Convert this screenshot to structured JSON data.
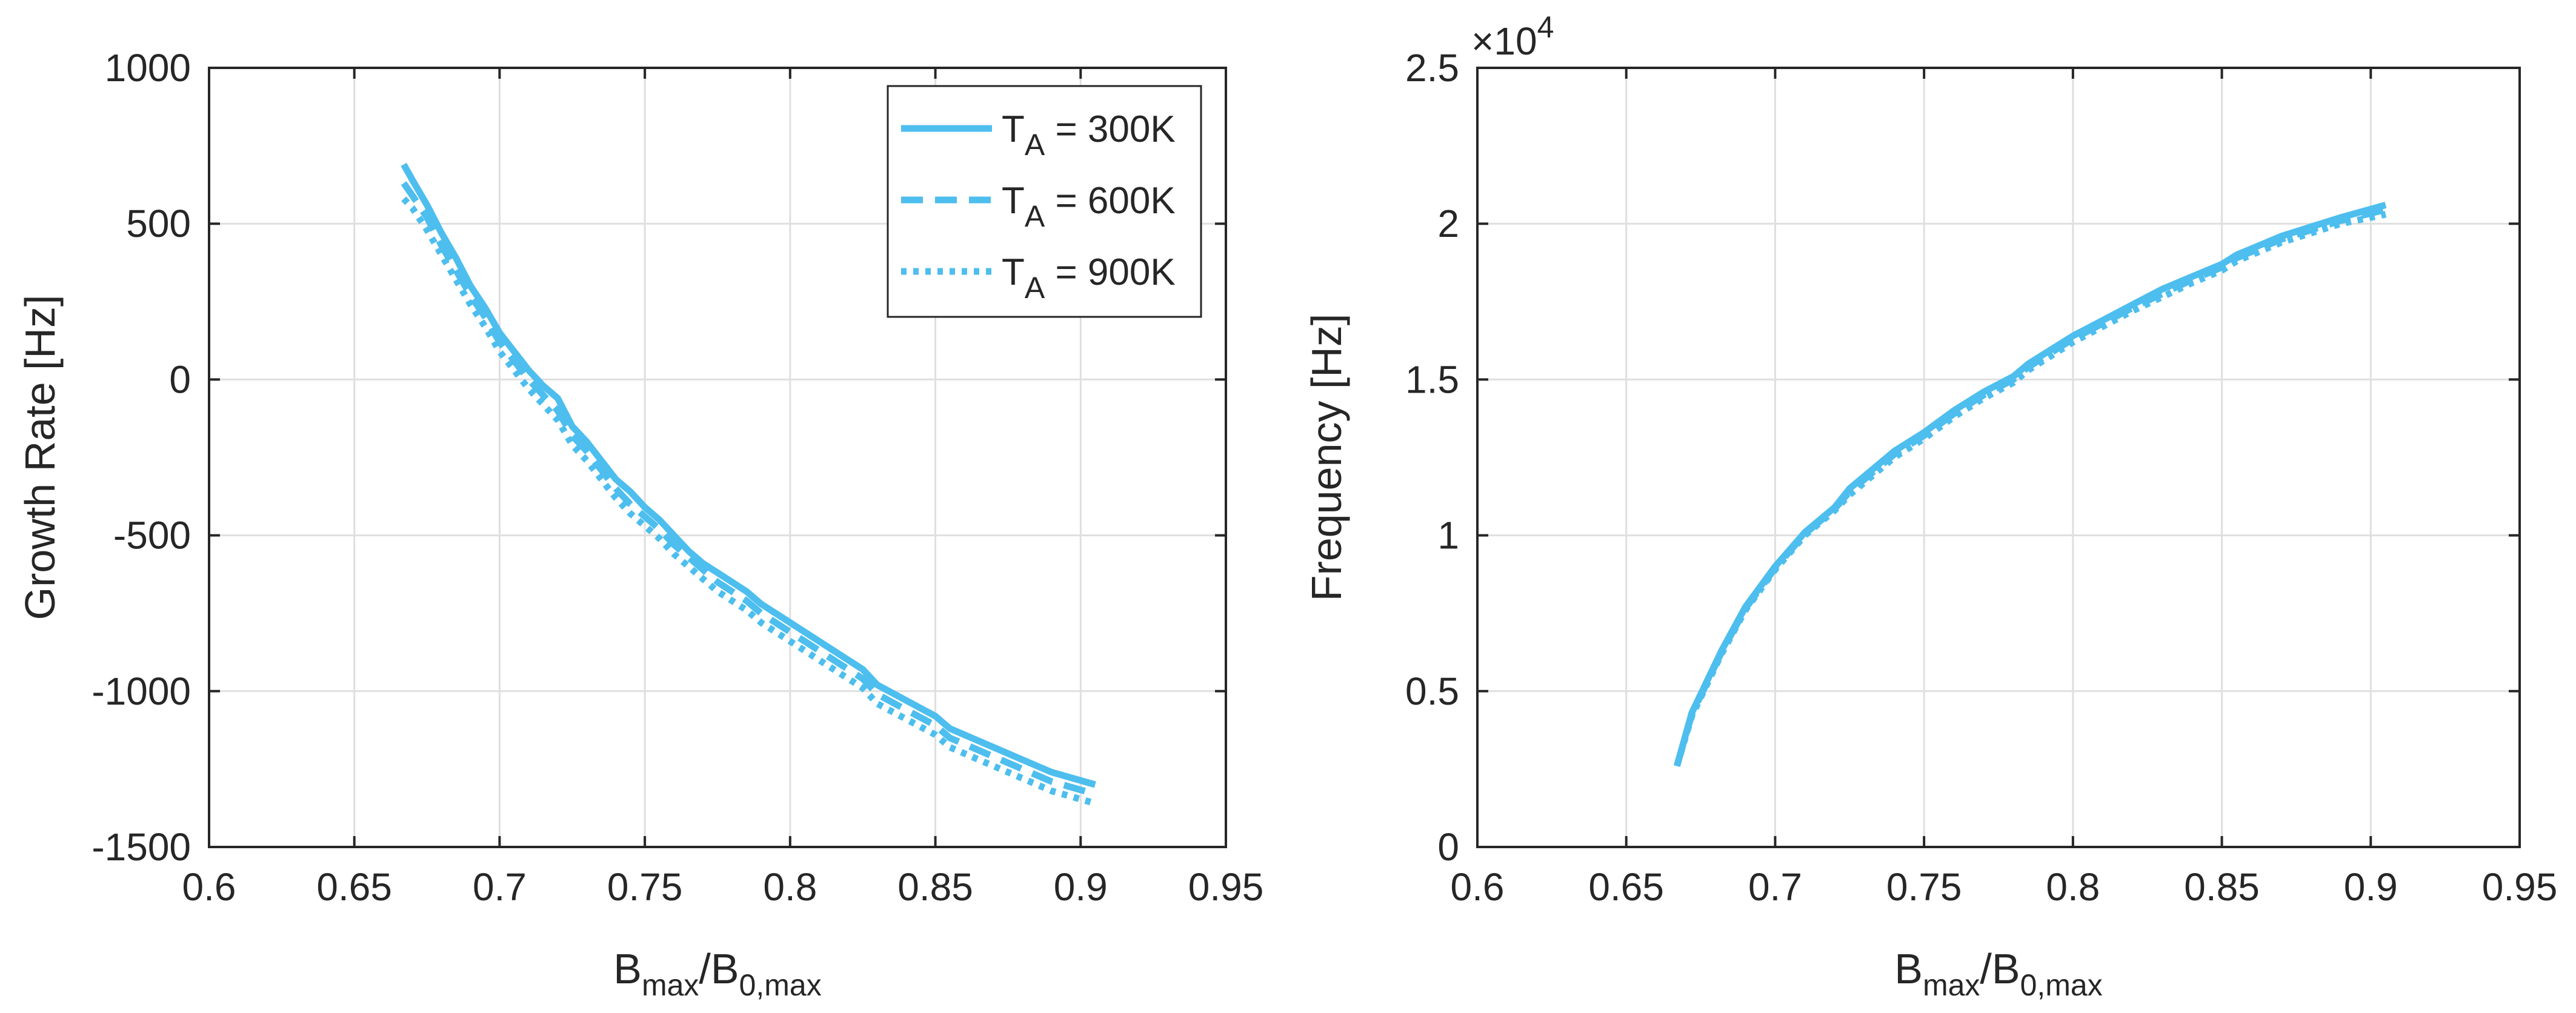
{
  "colors": {
    "series": "#4dbeee",
    "axis": "#262626",
    "grid": "#dfdfdf"
  },
  "chart_data": [
    {
      "type": "line",
      "id": "growth",
      "title": "",
      "xlabel": {
        "main": "B",
        "sub1": "max",
        "mid": "/B",
        "sub2": "0,max"
      },
      "ylabel": "Growth Rate [Hz]",
      "xlim": [
        0.6,
        0.95
      ],
      "ylim": [
        -1500,
        1000
      ],
      "xticks": [
        0.6,
        0.65,
        0.7,
        0.75,
        0.8,
        0.85,
        0.9,
        0.95
      ],
      "xtick_labels": [
        "0.6",
        "0.65",
        "0.7",
        "0.75",
        "0.8",
        "0.85",
        "0.9",
        "0.95"
      ],
      "yticks": [
        -1500,
        -1000,
        -500,
        0,
        500,
        1000
      ],
      "ytick_labels": [
        "-1500",
        "-1000",
        "-500",
        "0",
        "500",
        "1000"
      ],
      "grid": true,
      "legend_position": "top-right",
      "series": [
        {
          "name": "T_A = 300K",
          "label_main": "T",
          "label_sub": "A",
          "label_rest": " = 300K",
          "style": "solid",
          "x": [
            0.667,
            0.67,
            0.675,
            0.68,
            0.685,
            0.69,
            0.695,
            0.7,
            0.705,
            0.71,
            0.715,
            0.72,
            0.725,
            0.73,
            0.735,
            0.74,
            0.745,
            0.75,
            0.755,
            0.76,
            0.765,
            0.77,
            0.775,
            0.78,
            0.785,
            0.79,
            0.8,
            0.81,
            0.82,
            0.825,
            0.83,
            0.84,
            0.85,
            0.855,
            0.86,
            0.87,
            0.88,
            0.89,
            0.905
          ],
          "y": [
            690,
            640,
            560,
            470,
            390,
            300,
            230,
            150,
            90,
            30,
            -20,
            -60,
            -150,
            -200,
            -260,
            -320,
            -360,
            -410,
            -450,
            -500,
            -550,
            -590,
            -620,
            -650,
            -680,
            -720,
            -780,
            -840,
            -900,
            -930,
            -980,
            -1030,
            -1080,
            -1120,
            -1140,
            -1180,
            -1220,
            -1260,
            -1300
          ]
        },
        {
          "name": "T_A = 600K",
          "label_main": "T",
          "label_sub": "A",
          "label_rest": " = 600K",
          "style": "dashed",
          "x": [
            0.667,
            0.67,
            0.675,
            0.68,
            0.685,
            0.69,
            0.695,
            0.7,
            0.705,
            0.71,
            0.715,
            0.72,
            0.725,
            0.73,
            0.735,
            0.74,
            0.745,
            0.75,
            0.755,
            0.76,
            0.765,
            0.77,
            0.775,
            0.78,
            0.785,
            0.79,
            0.8,
            0.81,
            0.82,
            0.825,
            0.83,
            0.84,
            0.85,
            0.855,
            0.86,
            0.87,
            0.88,
            0.89,
            0.905
          ],
          "y": [
            630,
            590,
            520,
            430,
            350,
            270,
            200,
            120,
            60,
            0,
            -50,
            -100,
            -180,
            -230,
            -290,
            -350,
            -400,
            -440,
            -480,
            -530,
            -570,
            -610,
            -650,
            -680,
            -710,
            -750,
            -810,
            -870,
            -930,
            -960,
            -1010,
            -1060,
            -1110,
            -1150,
            -1170,
            -1210,
            -1250,
            -1290,
            -1330
          ]
        },
        {
          "name": "T_A = 900K",
          "label_main": "T",
          "label_sub": "A",
          "label_rest": " = 900K",
          "style": "dotted",
          "x": [
            0.667,
            0.67,
            0.675,
            0.68,
            0.685,
            0.69,
            0.695,
            0.7,
            0.705,
            0.71,
            0.715,
            0.72,
            0.725,
            0.73,
            0.735,
            0.74,
            0.745,
            0.75,
            0.755,
            0.76,
            0.765,
            0.77,
            0.775,
            0.78,
            0.785,
            0.79,
            0.8,
            0.81,
            0.82,
            0.825,
            0.83,
            0.84,
            0.85,
            0.855,
            0.86,
            0.87,
            0.88,
            0.89,
            0.905
          ],
          "y": [
            580,
            550,
            480,
            400,
            320,
            240,
            170,
            90,
            30,
            -30,
            -80,
            -130,
            -210,
            -260,
            -320,
            -380,
            -430,
            -470,
            -510,
            -560,
            -600,
            -640,
            -680,
            -710,
            -740,
            -780,
            -840,
            -900,
            -960,
            -990,
            -1040,
            -1090,
            -1140,
            -1180,
            -1200,
            -1240,
            -1280,
            -1320,
            -1360
          ]
        }
      ]
    },
    {
      "type": "line",
      "id": "frequency",
      "title": "",
      "xlabel": {
        "main": "B",
        "sub1": "max",
        "mid": "/B",
        "sub2": "0,max"
      },
      "ylabel": "Frequency [Hz]",
      "exponent_label": {
        "base": "×10",
        "power": "4"
      },
      "xlim": [
        0.6,
        0.95
      ],
      "ylim": [
        0,
        25000
      ],
      "xticks": [
        0.6,
        0.65,
        0.7,
        0.75,
        0.8,
        0.85,
        0.9,
        0.95
      ],
      "xtick_labels": [
        "0.6",
        "0.65",
        "0.7",
        "0.75",
        "0.8",
        "0.85",
        "0.9",
        "0.95"
      ],
      "yticks": [
        0,
        5000,
        10000,
        15000,
        20000,
        25000
      ],
      "ytick_labels": [
        "0",
        "0.5",
        "1",
        "1.5",
        "2",
        "2.5"
      ],
      "grid": true,
      "series": [
        {
          "name": "T_A = 300K",
          "style": "solid",
          "x": [
            0.667,
            0.672,
            0.677,
            0.682,
            0.69,
            0.7,
            0.71,
            0.72,
            0.725,
            0.73,
            0.74,
            0.75,
            0.76,
            0.77,
            0.78,
            0.785,
            0.79,
            0.8,
            0.81,
            0.82,
            0.83,
            0.84,
            0.85,
            0.855,
            0.86,
            0.87,
            0.88,
            0.89,
            0.905
          ],
          "y": [
            2600,
            4300,
            5300,
            6300,
            7700,
            9000,
            10100,
            10900,
            11500,
            11900,
            12700,
            13300,
            14000,
            14600,
            15100,
            15500,
            15800,
            16400,
            16900,
            17400,
            17900,
            18300,
            18700,
            19000,
            19200,
            19600,
            19900,
            20200,
            20600
          ]
        },
        {
          "name": "T_A = 600K",
          "style": "dashed",
          "x": [
            0.667,
            0.672,
            0.677,
            0.682,
            0.69,
            0.7,
            0.71,
            0.72,
            0.725,
            0.73,
            0.74,
            0.75,
            0.76,
            0.77,
            0.78,
            0.785,
            0.79,
            0.8,
            0.81,
            0.82,
            0.83,
            0.84,
            0.85,
            0.855,
            0.86,
            0.87,
            0.88,
            0.89,
            0.905
          ],
          "y": [
            2600,
            4250,
            5250,
            6250,
            7650,
            8950,
            10050,
            10850,
            11400,
            11800,
            12600,
            13200,
            13900,
            14500,
            15000,
            15400,
            15700,
            16300,
            16800,
            17300,
            17750,
            18200,
            18600,
            18900,
            19100,
            19500,
            19800,
            20100,
            20450
          ]
        },
        {
          "name": "T_A = 900K",
          "style": "dotted",
          "x": [
            0.667,
            0.672,
            0.677,
            0.682,
            0.69,
            0.7,
            0.71,
            0.72,
            0.725,
            0.73,
            0.74,
            0.75,
            0.76,
            0.77,
            0.78,
            0.785,
            0.79,
            0.8,
            0.81,
            0.82,
            0.83,
            0.84,
            0.85,
            0.855,
            0.86,
            0.87,
            0.88,
            0.89,
            0.905
          ],
          "y": [
            2600,
            4200,
            5200,
            6200,
            7600,
            8900,
            10000,
            10800,
            11300,
            11700,
            12500,
            13100,
            13800,
            14400,
            14900,
            15300,
            15600,
            16200,
            16700,
            17200,
            17650,
            18100,
            18500,
            18800,
            19000,
            19400,
            19700,
            20000,
            20300
          ]
        }
      ]
    }
  ]
}
